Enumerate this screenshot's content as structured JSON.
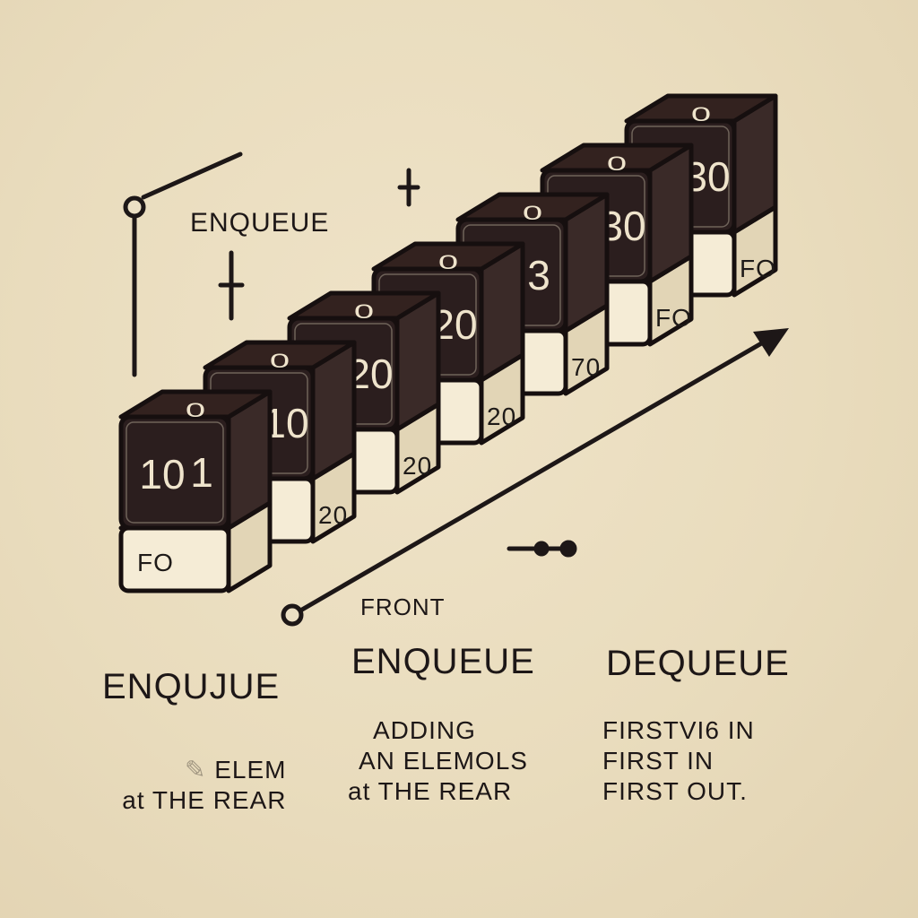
{
  "diagram": {
    "enqueue_label": "ENQUEUE",
    "front_label": "FRONT",
    "cubes": [
      {
        "front": "10",
        "side": "1",
        "top": "0",
        "base_front": "FO",
        "base_side": ""
      },
      {
        "front": "",
        "side": "10",
        "top": "0",
        "base_front": "",
        "base_side": "20"
      },
      {
        "front": "",
        "side": "20",
        "top": "0",
        "base_front": "",
        "base_side": "20"
      },
      {
        "front": "",
        "side": "20",
        "top": "0",
        "base_front": "",
        "base_side": "20"
      },
      {
        "front": "",
        "side": "3",
        "top": "0",
        "base_front": "",
        "base_side": "70"
      },
      {
        "front": "",
        "side": "30",
        "top": "0",
        "base_front": "",
        "base_side": "FO"
      },
      {
        "front": "",
        "side": "30",
        "top": "0",
        "base_front": "",
        "base_side": "FO"
      }
    ]
  },
  "columns": [
    {
      "heading": "ENQUJUE",
      "lines": [
        "ELEM",
        "at THE REAR"
      ]
    },
    {
      "heading": "ENQUEUE",
      "lines": [
        "ADDING",
        "AN ELEMOLS",
        "at THE REAR"
      ]
    },
    {
      "heading": "DEQUEUE",
      "lines": [
        "FIRSTVI6 IN",
        "FIRST  IN",
        "FIRST OUT."
      ]
    }
  ]
}
